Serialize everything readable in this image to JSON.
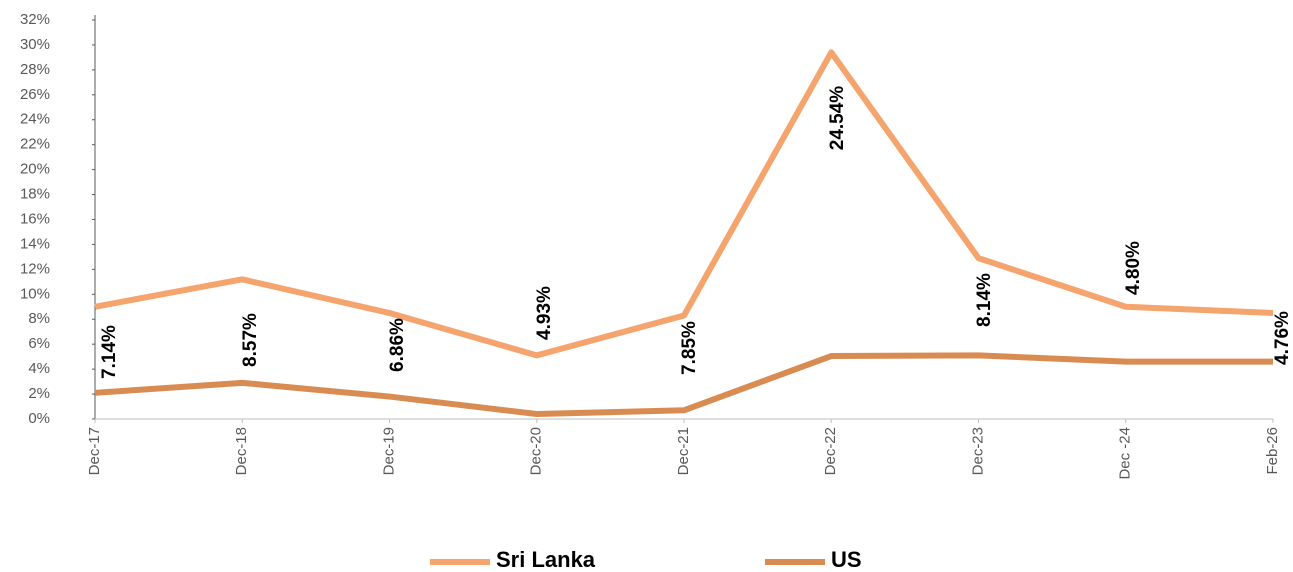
{
  "chart_data": {
    "type": "line",
    "categories": [
      "Dec-17",
      "Dec-18",
      "Dec-19",
      "Dec-20",
      "Dec-21",
      "Dec-22",
      "Dec-23",
      "Dec-24",
      "Feb-26"
    ],
    "category_labels": [
      "Dec-17",
      "Dec-18",
      "Dec-19",
      "Dec-20",
      "Dec-21",
      "Dec-22",
      "Dec-23",
      "Dec -24",
      "Feb-26"
    ],
    "series": [
      {
        "name": "Sri Lanka",
        "color": "#f4a46c",
        "values": [
          9.0,
          11.2,
          8.5,
          5.1,
          8.3,
          29.4,
          12.9,
          9.0,
          8.5
        ]
      },
      {
        "name": "US",
        "color": "#d98c52",
        "values": [
          2.1,
          2.9,
          1.8,
          0.4,
          0.7,
          5.05,
          5.1,
          4.6,
          4.6
        ]
      }
    ],
    "annotations": [
      "7.14%",
      "8.57%",
      "6.86%",
      "4.93%",
      "7.85%",
      "24.54%",
      "8.14%",
      "4.80%",
      "4.76%"
    ],
    "ylim": [
      0,
      32
    ],
    "yticks": [
      {
        "value": 0,
        "label": "0%"
      },
      {
        "value": 2,
        "label": "2%"
      },
      {
        "value": 4,
        "label": "4%"
      },
      {
        "value": 6,
        "label": "6%"
      },
      {
        "value": 8,
        "label": "8%"
      },
      {
        "value": 10,
        "label": "10%"
      },
      {
        "value": 12,
        "label": "12%"
      },
      {
        "value": 14,
        "label": "14%"
      },
      {
        "value": 16,
        "label": "16%"
      },
      {
        "value": 18,
        "label": "18%"
      },
      {
        "value": 20,
        "label": "20%"
      },
      {
        "value": 22,
        "label": "22%"
      },
      {
        "value": 24,
        "label": "24%"
      },
      {
        "value": 26,
        "label": "26%"
      },
      {
        "value": 28,
        "label": "28%"
      },
      {
        "value": 30,
        "label": "30%"
      },
      {
        "value": 32,
        "label": "32%"
      }
    ],
    "grid": false,
    "legend": "bottom"
  }
}
